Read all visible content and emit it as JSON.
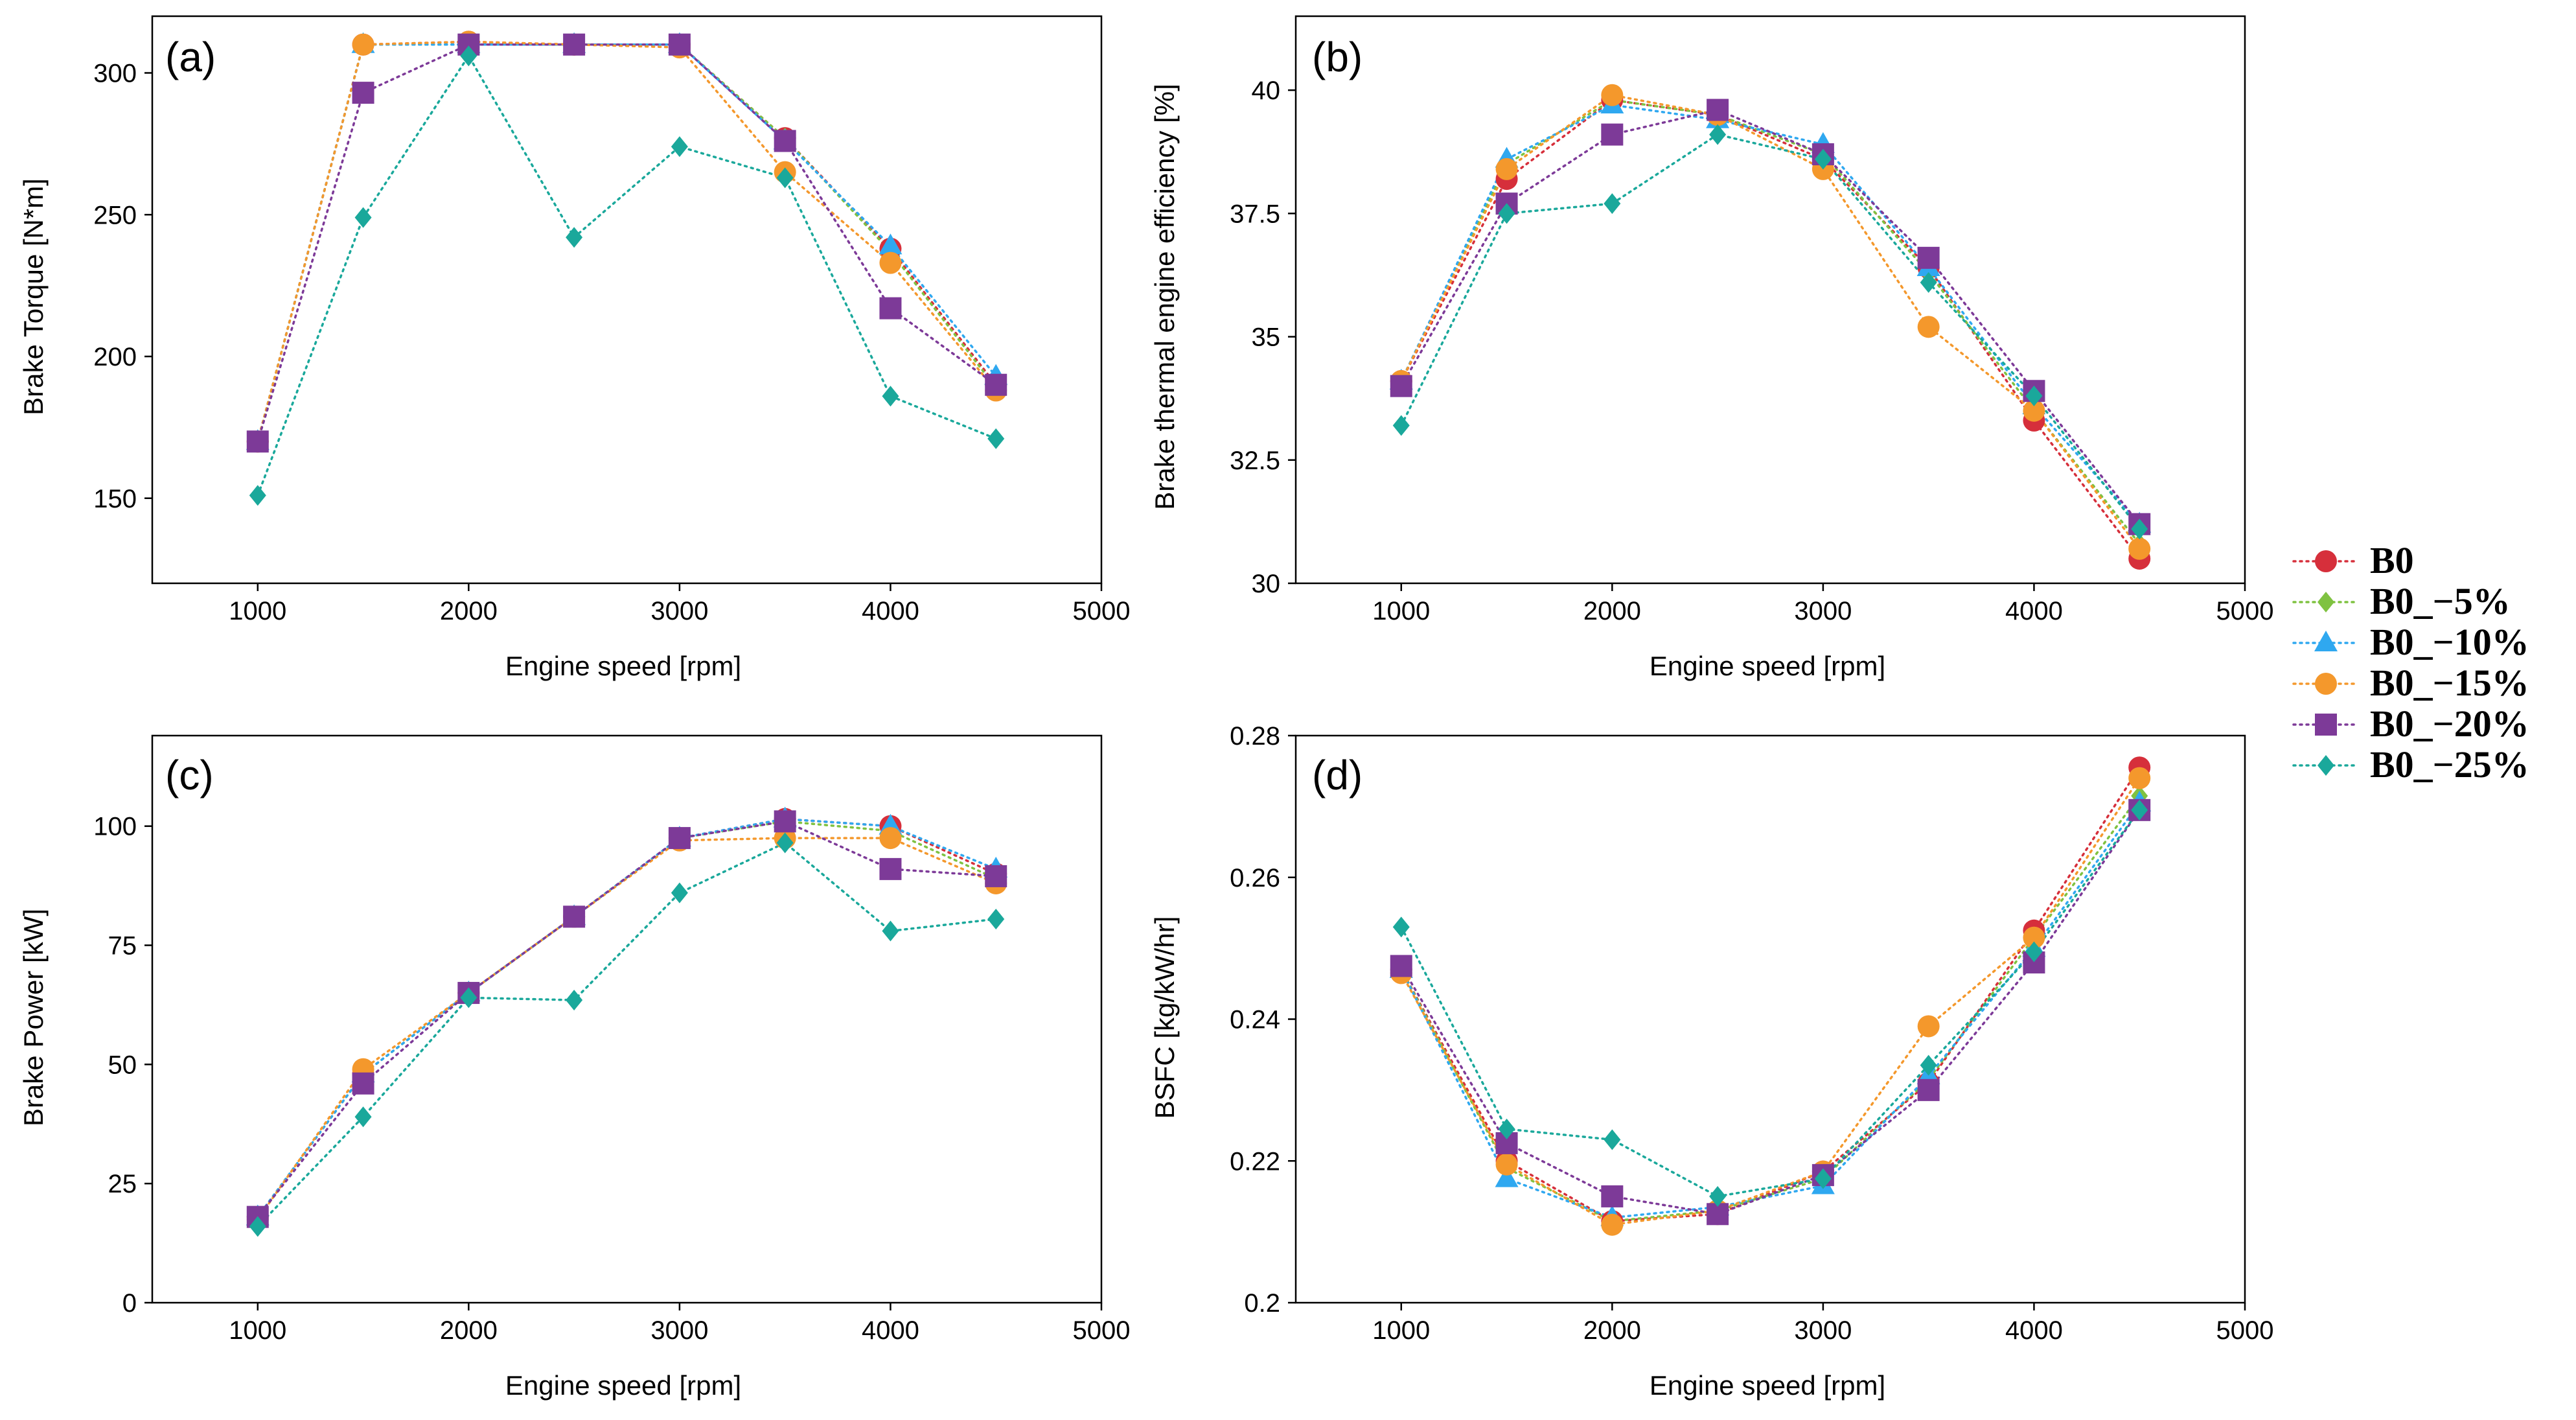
{
  "series_styles": [
    {
      "key": "B0",
      "color": "#d62f3b",
      "marker": "circle"
    },
    {
      "key": "B0_5",
      "color": "#7fc241",
      "marker": "diamond"
    },
    {
      "key": "B0_10",
      "color": "#2fa8f0",
      "marker": "triangle"
    },
    {
      "key": "B0_15",
      "color": "#f4982c",
      "marker": "circle"
    },
    {
      "key": "B0_20",
      "color": "#7d3a98",
      "marker": "square"
    },
    {
      "key": "B0_25",
      "color": "#1aa89b",
      "marker": "diamond"
    }
  ],
  "legend": {
    "entries": [
      "B0",
      "B0_−5%",
      "B0_−10%",
      "B0_−15%",
      "B0_−20%",
      "B0_−25%"
    ]
  },
  "chart_data": [
    {
      "type": "line",
      "panel_tag": "(a)",
      "xlabel": "Engine speed [rpm]",
      "ylabel": "Brake Torque [N*m]",
      "xlim": [
        500,
        5000
      ],
      "ylim": [
        120,
        320
      ],
      "xticks": [
        1000,
        2000,
        3000,
        4000,
        5000
      ],
      "yticks": [
        150,
        200,
        250,
        300
      ],
      "ytick_labels": [
        "150",
        "200",
        "250",
        "300"
      ],
      "x": [
        1000,
        1500,
        2000,
        2500,
        3000,
        3500,
        4000,
        4500
      ],
      "series": [
        {
          "name": "B0",
          "values": [
            170,
            310,
            311,
            310,
            310,
            277,
            238,
            190
          ]
        },
        {
          "name": "B0_−5%",
          "values": [
            170,
            310,
            310,
            310,
            310,
            277,
            237,
            189
          ]
        },
        {
          "name": "B0_−10%",
          "values": [
            170,
            310,
            310,
            310,
            310,
            276,
            239,
            193
          ]
        },
        {
          "name": "B0_−15%",
          "values": [
            170,
            310,
            311,
            310,
            309,
            265,
            233,
            188
          ]
        },
        {
          "name": "B0_−20%",
          "values": [
            170,
            293,
            310,
            310,
            310,
            276,
            217,
            190
          ]
        },
        {
          "name": "B0_−25%",
          "values": [
            151,
            249,
            306,
            242,
            274,
            263,
            186,
            171
          ]
        }
      ]
    },
    {
      "type": "line",
      "panel_tag": "(b)",
      "xlabel": "Engine speed [rpm]",
      "ylabel": "Brake thermal engine efficiency [%]",
      "xlim": [
        500,
        5000
      ],
      "ylim": [
        30,
        41.5
      ],
      "xticks": [
        1000,
        2000,
        3000,
        4000,
        5000
      ],
      "yticks": [
        30,
        32.5,
        35,
        37.5,
        40
      ],
      "ytick_labels": [
        "30",
        "32.5",
        "35",
        "37.5",
        "40"
      ],
      "x": [
        1000,
        1500,
        2000,
        2500,
        3000,
        3500,
        4000,
        4500
      ],
      "series": [
        {
          "name": "B0",
          "values": [
            34.1,
            38.2,
            39.8,
            39.5,
            38.6,
            36.4,
            33.3,
            30.5
          ]
        },
        {
          "name": "B0_−5%",
          "values": [
            34.1,
            38.5,
            39.8,
            39.5,
            38.7,
            36.3,
            33.5,
            30.8
          ]
        },
        {
          "name": "B0_−10%",
          "values": [
            34.1,
            38.6,
            39.7,
            39.4,
            38.9,
            36.4,
            33.6,
            31.2
          ]
        },
        {
          "name": "B0_−15%",
          "values": [
            34.1,
            38.4,
            39.9,
            39.5,
            38.4,
            35.2,
            33.5,
            30.7
          ]
        },
        {
          "name": "B0_−20%",
          "values": [
            34.0,
            37.7,
            39.1,
            39.6,
            38.7,
            36.6,
            33.9,
            31.2
          ]
        },
        {
          "name": "B0_−25%",
          "values": [
            33.2,
            37.5,
            37.7,
            39.1,
            38.6,
            36.1,
            33.8,
            31.1
          ]
        }
      ]
    },
    {
      "type": "line",
      "panel_tag": "(c)",
      "xlabel": "Engine speed [rpm]",
      "ylabel": "Brake Power [kW]",
      "xlim": [
        500,
        5000
      ],
      "ylim": [
        0,
        119
      ],
      "xticks": [
        1000,
        2000,
        3000,
        4000,
        5000
      ],
      "yticks": [
        0,
        25,
        50,
        75,
        100
      ],
      "ytick_labels": [
        "0",
        "25",
        "50",
        "75",
        "100"
      ],
      "x": [
        1000,
        1500,
        2000,
        2500,
        3000,
        3500,
        4000,
        4500
      ],
      "series": [
        {
          "name": "B0",
          "values": [
            18,
            48,
            65,
            81,
            97.5,
            101.5,
            100,
            90
          ]
        },
        {
          "name": "B0_−5%",
          "values": [
            18,
            48,
            65,
            81,
            97.5,
            101,
            99,
            89
          ]
        },
        {
          "name": "B0_−10%",
          "values": [
            18,
            48,
            65,
            81,
            97.5,
            101.5,
            100,
            91
          ]
        },
        {
          "name": "B0_−15%",
          "values": [
            17.5,
            49,
            65,
            81,
            97,
            97.5,
            97.5,
            88
          ]
        },
        {
          "name": "B0_−20%",
          "values": [
            18,
            46,
            65,
            81,
            97.5,
            101,
            91,
            89.5
          ]
        },
        {
          "name": "B0_−25%",
          "values": [
            16,
            39,
            64,
            63.5,
            86,
            96.5,
            78,
            80.5
          ]
        }
      ]
    },
    {
      "type": "line",
      "panel_tag": "(d)",
      "xlabel": "Engine speed [rpm]",
      "ylabel": "BSFC [kg/kW/hr]",
      "xlim": [
        500,
        5000
      ],
      "ylim": [
        0.2,
        0.28
      ],
      "xticks": [
        1000,
        2000,
        3000,
        4000,
        5000
      ],
      "yticks": [
        0.2,
        0.22,
        0.24,
        0.26,
        0.28
      ],
      "ytick_labels": [
        "0.2",
        "0.22",
        "0.24",
        "0.26",
        "0.28"
      ],
      "x": [
        1000,
        1500,
        2000,
        2500,
        3000,
        3500,
        4000,
        4500
      ],
      "series": [
        {
          "name": "B0",
          "values": [
            0.247,
            0.22,
            0.2115,
            0.2125,
            0.2185,
            0.231,
            0.2525,
            0.2755
          ]
        },
        {
          "name": "B0_−5%",
          "values": [
            0.247,
            0.219,
            0.2115,
            0.213,
            0.2175,
            0.2315,
            0.2515,
            0.2715
          ]
        },
        {
          "name": "B0_−10%",
          "values": [
            0.247,
            0.2175,
            0.212,
            0.2135,
            0.2165,
            0.232,
            0.25,
            0.2705
          ]
        },
        {
          "name": "B0_−15%",
          "values": [
            0.2465,
            0.2195,
            0.211,
            0.213,
            0.2185,
            0.239,
            0.2515,
            0.274
          ]
        },
        {
          "name": "B0_−20%",
          "values": [
            0.2475,
            0.2225,
            0.215,
            0.2125,
            0.218,
            0.23,
            0.248,
            0.2695
          ]
        },
        {
          "name": "B0_−25%",
          "values": [
            0.253,
            0.2245,
            0.223,
            0.215,
            0.2175,
            0.2335,
            0.2495,
            0.2695
          ]
        }
      ]
    }
  ]
}
